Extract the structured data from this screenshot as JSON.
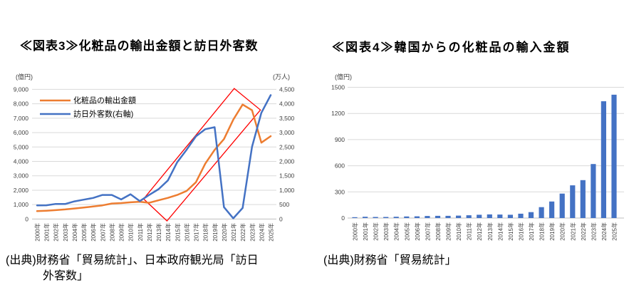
{
  "figure3": {
    "title": "≪図表3≫化粧品の輸出金額と訪日外客数",
    "source_line1": "(出典)財務省「貿易統計」、日本政府観光局「訪日",
    "source_line2": "外客数」"
  },
  "figure4": {
    "title": "≪図表4≫韓国からの化粧品の輸入金額",
    "source_line1": "(出典)財務省「貿易統計」"
  },
  "chart_data": [
    {
      "id": "fig3",
      "type": "line",
      "title": "≪図表3≫化粧品の輸出金額と訪日外客数",
      "x": [
        "2000年",
        "2001年",
        "2002年",
        "2003年",
        "2004年",
        "2005年",
        "2006年",
        "2007年",
        "2008年",
        "2009年",
        "2010年",
        "2011年",
        "2012年",
        "2013年",
        "2014年",
        "2015年",
        "2016年",
        "2017年",
        "2018年",
        "2019年",
        "2020年",
        "2021年",
        "2022年",
        "2023年",
        "2024年",
        "2025年"
      ],
      "left_axis_unit": "(億円)",
      "right_axis_unit": "(万人)",
      "left_ylim": [
        0,
        9000
      ],
      "right_ylim": [
        0,
        4500
      ],
      "left_tick_labels": [
        "0",
        "1,000",
        "2,000",
        "3,000",
        "4,000",
        "5,000",
        "6,000",
        "7,000",
        "8,000",
        "9,000"
      ],
      "right_tick_labels": [
        "0",
        "500",
        "1,000",
        "1,500",
        "2,000",
        "2,500",
        "3,000",
        "3,500",
        "4,000",
        "4,500"
      ],
      "grid": true,
      "legend_position": "top-left-inside",
      "series": [
        {
          "name": "化粧品の輸出金額",
          "axis": "left",
          "color": "#ED7D31",
          "values": [
            550,
            580,
            620,
            670,
            730,
            800,
            870,
            950,
            1080,
            1110,
            1160,
            1200,
            1130,
            1300,
            1470,
            1670,
            1950,
            2550,
            3850,
            4800,
            5550,
            6900,
            7950,
            7550,
            5300,
            5750
          ]
        },
        {
          "name": "訪日外客数(右軸)",
          "axis": "right",
          "color": "#4472C4",
          "values": [
            476,
            477,
            524,
            521,
            614,
            673,
            733,
            835,
            835,
            679,
            861,
            622,
            836,
            1036,
            1341,
            1974,
            2404,
            2869,
            3119,
            3188,
            412,
            25,
            383,
            2507,
            3687,
            4300
          ]
        }
      ],
      "annotation": {
        "shape": "rotated-rect-outline",
        "color": "#FF0000",
        "points_year_index_and_left_value": [
          [
            11.4,
            1400
          ],
          [
            13.9,
            -130
          ],
          [
            23.9,
            7570
          ],
          [
            21.1,
            9060
          ]
        ]
      }
    },
    {
      "id": "fig4",
      "type": "bar",
      "title": "≪図表4≫韓国からの化粧品の輸入金額",
      "axis_unit": "(億円)",
      "categories": [
        "2000年",
        "2001年",
        "2002年",
        "2003年",
        "2004年",
        "2005年",
        "2006年",
        "2007年",
        "2008年",
        "2009年",
        "2010年",
        "2011年",
        "2012年",
        "2013年",
        "2014年",
        "2015年",
        "2016年",
        "2017年",
        "2018年",
        "2019年",
        "2020年",
        "2021年",
        "2022年",
        "2023年",
        "2024年",
        "2025年"
      ],
      "values": [
        10,
        15,
        12,
        12,
        15,
        18,
        20,
        24,
        25,
        25,
        28,
        32,
        38,
        42,
        40,
        38,
        50,
        68,
        125,
        190,
        280,
        375,
        435,
        620,
        1340,
        1415
      ],
      "bar_color": "#4472C4",
      "ylim": [
        0,
        1500
      ],
      "tick_labels": [
        "0",
        "300",
        "600",
        "900",
        "1200",
        "1500"
      ],
      "grid": true
    }
  ],
  "colors": {
    "export_line": "#ED7D31",
    "visitors_line": "#4472C4",
    "import_bars": "#4472C4",
    "annotation_box": "#FF0000",
    "gridline": "#D9D9D9",
    "axis_line": "#BFBFBF",
    "axis_text": "#404040"
  }
}
